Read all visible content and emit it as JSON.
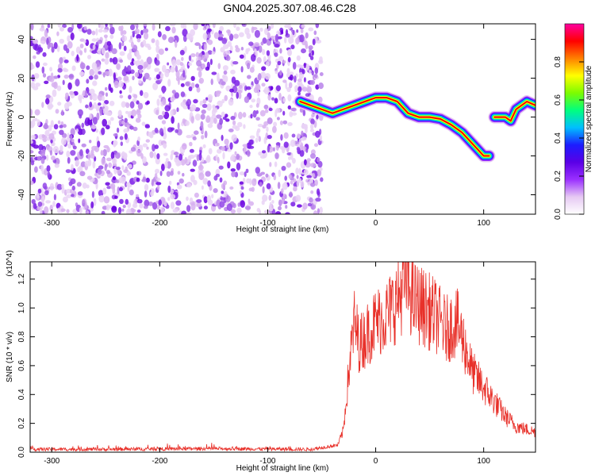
{
  "title": "GN04.2025.307.08.46.C28",
  "chart_data": [
    {
      "type": "heatmap",
      "title": "GN04.2025.307.08.46.C28",
      "xlabel": "Height of straight line (km)",
      "ylabel": "Frequency (Hz)",
      "xlim": [
        -320,
        148
      ],
      "ylim": [
        -50,
        48
      ],
      "xticks": [
        -300,
        -200,
        -100,
        0,
        100
      ],
      "yticks": [
        -40,
        -20,
        0,
        20,
        40
      ],
      "noise_region_km": [
        -320,
        -50
      ],
      "colorbar": {
        "label": "Normalized spectral amplitude",
        "range": [
          0,
          1
        ],
        "ticks": [
          "0.0",
          "0.2",
          "0.4",
          "0.6",
          "0.8"
        ],
        "colors": [
          "#ffffff",
          "#e6c9f3",
          "#9b30ff",
          "#5a00e6",
          "#1c1cff",
          "#00bfff",
          "#00ff7f",
          "#7cfc00",
          "#ffff00",
          "#ff8000",
          "#ff0000",
          "#ff00a0"
        ]
      },
      "ridge": {
        "x": [
          -70,
          -60,
          -50,
          -40,
          -30,
          -20,
          -10,
          0,
          10,
          20,
          30,
          40,
          50,
          60,
          70,
          80,
          90,
          100,
          105,
          110,
          120,
          125,
          130,
          140,
          148
        ],
        "y": [
          8,
          6,
          4,
          2,
          4,
          6,
          8,
          10,
          10,
          8,
          2,
          0,
          0,
          -1,
          -4,
          -8,
          -14,
          -20,
          -20,
          0,
          0,
          -2,
          4,
          8,
          6
        ]
      }
    },
    {
      "type": "line",
      "xlabel": "Height of straight line (km)",
      "ylabel": "SNR (10 * v/v)",
      "y_multiplier": "(x10^4)",
      "xlim": [
        -320,
        148
      ],
      "ylim": [
        0,
        1.32
      ],
      "xticks": [
        -300,
        -200,
        -100,
        0,
        100
      ],
      "yticks": [
        "0.0",
        "0.2",
        "0.4",
        "0.6",
        "0.8",
        "1.0",
        "1.2"
      ],
      "series": [
        {
          "name": "SNR",
          "color": "#e8312a",
          "x": [
            -320,
            -250,
            -150,
            -60,
            -35,
            -30,
            -25,
            -20,
            -15,
            -10,
            -5,
            0,
            10,
            20,
            28,
            35,
            45,
            55,
            65,
            75,
            80,
            90,
            100,
            110,
            120,
            130,
            148
          ],
          "y": [
            0.02,
            0.02,
            0.025,
            0.02,
            0.05,
            0.15,
            0.55,
            0.9,
            0.75,
            0.8,
            0.85,
            0.9,
            0.95,
            1.05,
            1.2,
            1.05,
            1.0,
            0.95,
            0.85,
            0.9,
            0.8,
            0.55,
            0.45,
            0.35,
            0.25,
            0.18,
            0.14
          ]
        }
      ]
    }
  ]
}
